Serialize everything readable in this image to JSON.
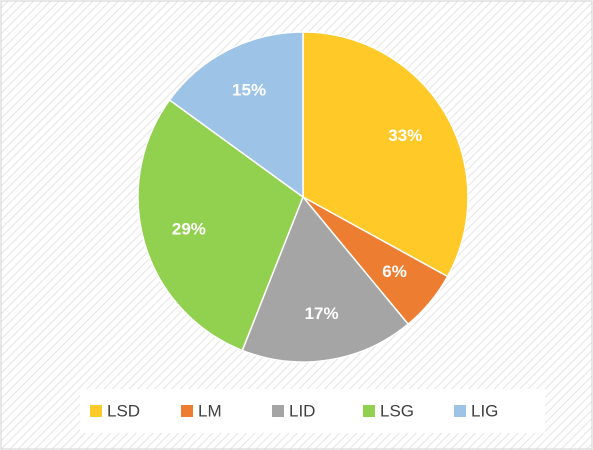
{
  "chart_data": {
    "type": "pie",
    "categories": [
      "LSD",
      "LM",
      "LID",
      "LSG",
      "LIG"
    ],
    "values": [
      33,
      6,
      17,
      29,
      15
    ],
    "value_labels": [
      "33%",
      "6%",
      "17%",
      "29%",
      "15%"
    ],
    "colors": [
      "#FFC928",
      "#ED7D31",
      "#A5A5A5",
      "#92D050",
      "#9DC3E6"
    ],
    "legend": "bottom"
  }
}
